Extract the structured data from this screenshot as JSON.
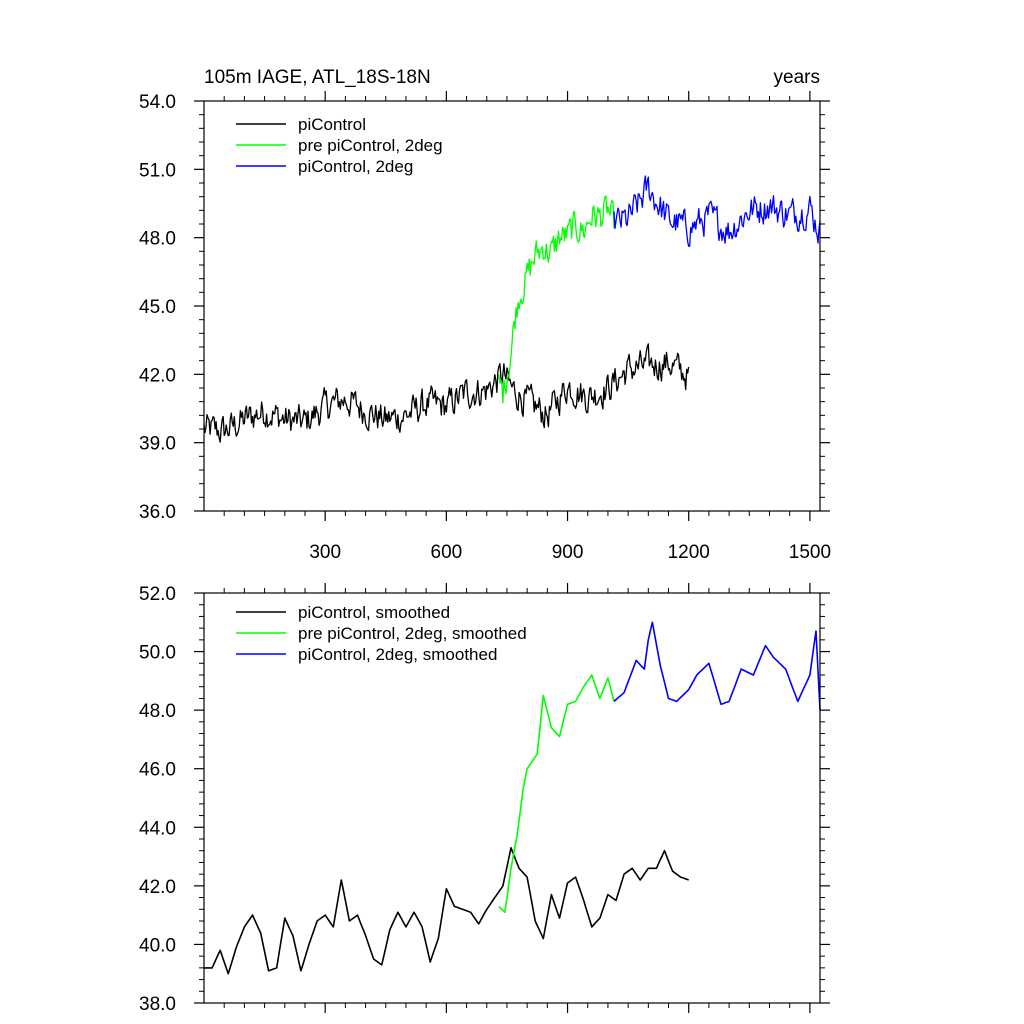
{
  "chart_data": [
    {
      "type": "line",
      "title": "105m IAGE, ATL_18S-18N",
      "right_title": "years",
      "xlim": [
        0,
        1525
      ],
      "ylim": [
        36.0,
        54.0
      ],
      "xticks": [
        300,
        600,
        900,
        1200,
        1500
      ],
      "xtick_labels": [
        "300",
        "600",
        "900",
        "1200",
        "1500"
      ],
      "yticks": [
        36.0,
        39.0,
        42.0,
        45.0,
        48.0,
        51.0,
        54.0
      ],
      "ytick_labels": [
        "36.0",
        "39.0",
        "42.0",
        "45.0",
        "48.0",
        "51.0",
        "54.0"
      ],
      "legend": [
        "piControl",
        "pre piControl, 2deg",
        "piControl, 2deg"
      ],
      "legend_position": "top-left",
      "series": [
        {
          "name": "piControl",
          "color": "#000000",
          "x": [
            0,
            50,
            100,
            150,
            200,
            250,
            300,
            350,
            400,
            450,
            500,
            550,
            600,
            650,
            700,
            740,
            760,
            800,
            850,
            900,
            950,
            1000,
            1050,
            1100,
            1150,
            1200
          ],
          "values": [
            39.6,
            39.5,
            40.0,
            40.4,
            40.0,
            39.9,
            40.6,
            40.9,
            40.4,
            40.0,
            40.2,
            40.7,
            40.6,
            41.2,
            41.3,
            42.0,
            41.4,
            40.8,
            40.2,
            41.5,
            41.0,
            41.4,
            42.2,
            42.4,
            42.5,
            41.9
          ]
        },
        {
          "name": "pre piControl, 2deg",
          "color": "#00ff00",
          "x": [
            730,
            740,
            750,
            760,
            770,
            780,
            800,
            820,
            840,
            860,
            880,
            900,
            920,
            940,
            960,
            980,
            1000,
            1015
          ],
          "values": [
            41.6,
            41.2,
            42.1,
            43.0,
            44.5,
            45.5,
            46.3,
            47.2,
            47.6,
            47.3,
            48.0,
            48.1,
            48.5,
            48.3,
            49.0,
            48.9,
            49.2,
            48.6
          ]
        },
        {
          "name": "piControl, 2deg",
          "color": "#0000ff",
          "x": [
            1015,
            1050,
            1080,
            1100,
            1120,
            1150,
            1200,
            1250,
            1300,
            1350,
            1400,
            1450,
            1500,
            1525
          ],
          "values": [
            48.6,
            48.8,
            49.6,
            50.2,
            49.6,
            48.8,
            48.4,
            48.9,
            48.3,
            49.2,
            49.4,
            49.0,
            49.3,
            48.2
          ]
        }
      ]
    },
    {
      "type": "line",
      "xlim": [
        0,
        1525
      ],
      "ylim": [
        38.0,
        52.0
      ],
      "xticks": [
        300,
        600,
        900,
        1200,
        1500
      ],
      "yticks": [
        38.0,
        40.0,
        42.0,
        44.0,
        46.0,
        48.0,
        50.0,
        52.0
      ],
      "ytick_labels": [
        "38.0",
        "40.0",
        "42.0",
        "44.0",
        "46.0",
        "48.0",
        "50.0",
        "52.0"
      ],
      "legend": [
        "piControl, smoothed",
        "pre piControl, 2deg, smoothed",
        "piControl, 2deg, smoothed"
      ],
      "legend_position": "top-left",
      "series": [
        {
          "name": "piControl, smoothed",
          "color": "#000000",
          "x": [
            0,
            20,
            40,
            60,
            80,
            100,
            120,
            140,
            160,
            180,
            200,
            220,
            240,
            260,
            280,
            300,
            320,
            340,
            360,
            380,
            400,
            420,
            440,
            460,
            480,
            500,
            520,
            540,
            560,
            580,
            600,
            620,
            640,
            660,
            680,
            700,
            720,
            740,
            760,
            780,
            800,
            820,
            840,
            860,
            880,
            900,
            920,
            940,
            960,
            980,
            1000,
            1020,
            1040,
            1060,
            1080,
            1100,
            1120,
            1140,
            1160,
            1180,
            1200
          ],
          "values": [
            39.2,
            39.2,
            39.8,
            39.0,
            39.9,
            40.6,
            41.0,
            40.4,
            39.1,
            39.2,
            40.9,
            40.3,
            39.1,
            40.0,
            40.8,
            41.0,
            40.6,
            42.2,
            40.8,
            41.0,
            40.3,
            39.5,
            39.3,
            40.5,
            41.1,
            40.6,
            41.1,
            40.6,
            39.4,
            40.2,
            41.9,
            41.3,
            41.2,
            41.1,
            40.7,
            41.2,
            41.6,
            42.0,
            43.3,
            42.6,
            42.3,
            40.8,
            40.2,
            41.7,
            40.9,
            42.1,
            42.3,
            41.5,
            40.6,
            40.9,
            41.7,
            41.5,
            42.4,
            42.6,
            42.2,
            42.6,
            42.6,
            43.2,
            42.5,
            42.3,
            42.2
          ]
        },
        {
          "name": "pre piControl, 2deg, smoothed",
          "color": "#00ff00",
          "x": [
            730,
            745,
            760,
            775,
            790,
            800,
            810,
            825,
            840,
            860,
            880,
            900,
            920,
            940,
            960,
            980,
            1000,
            1015
          ],
          "values": [
            41.3,
            41.1,
            42.6,
            43.7,
            45.3,
            46.0,
            46.2,
            46.5,
            48.5,
            47.4,
            47.1,
            48.2,
            48.3,
            48.8,
            49.2,
            48.4,
            49.1,
            48.3
          ]
        },
        {
          "name": "piControl, 2deg, smoothed",
          "color": "#0000ff",
          "x": [
            1015,
            1040,
            1070,
            1090,
            1100,
            1110,
            1130,
            1150,
            1170,
            1200,
            1220,
            1250,
            1280,
            1300,
            1330,
            1360,
            1390,
            1410,
            1440,
            1470,
            1500,
            1515,
            1525
          ],
          "values": [
            48.3,
            48.6,
            49.7,
            49.4,
            50.4,
            51.0,
            49.5,
            48.4,
            48.3,
            48.7,
            49.2,
            49.6,
            48.2,
            48.3,
            49.4,
            49.2,
            50.2,
            49.8,
            49.4,
            48.3,
            49.2,
            50.7,
            48.0
          ]
        }
      ]
    }
  ]
}
